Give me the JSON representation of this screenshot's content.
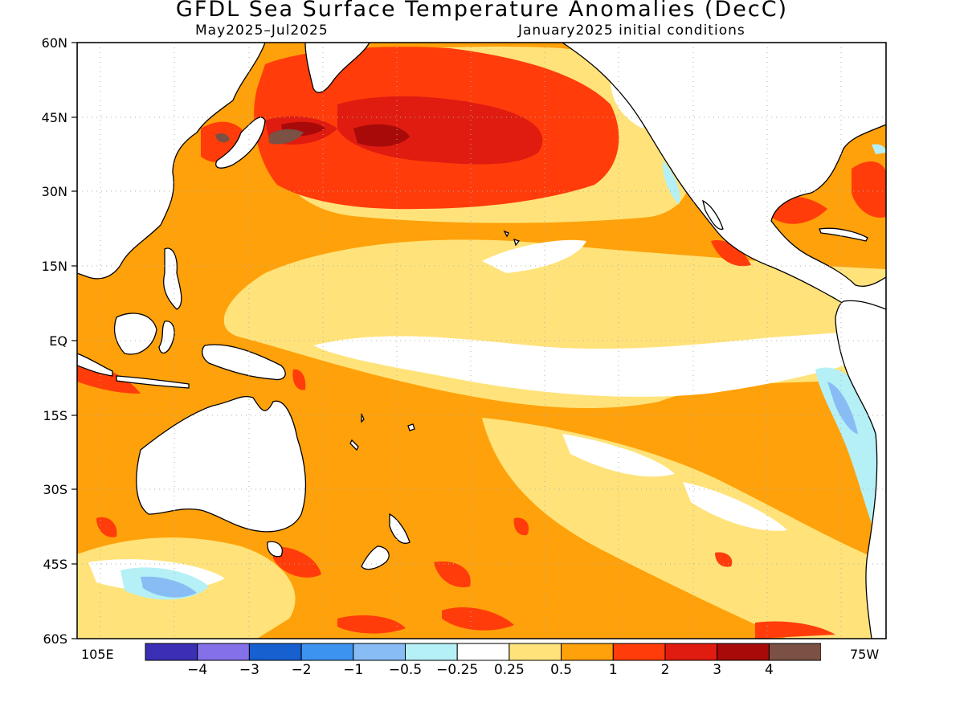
{
  "title": "GFDL Sea Surface Temperature Anomalies (DecC)",
  "subtitle_left": "May2025–Jul2025",
  "subtitle_right": "January2025 initial conditions",
  "lat_labels": [
    "60N",
    "45N",
    "30N",
    "15N",
    "EQ",
    "15S",
    "30S",
    "45S",
    "60S"
  ],
  "lon_labels": {
    "left": "105E",
    "right": "75W"
  },
  "colorbar": {
    "colors": [
      "#3b2fb5",
      "#8470e8",
      "#1660d0",
      "#3d93f0",
      "#87bdf4",
      "#b4f0f6",
      "#ffffff",
      "#ffe37a",
      "#ffa10a",
      "#ff3c0a",
      "#e01b10",
      "#a80a0a",
      "#7a5143"
    ],
    "labels": [
      "−4",
      "−3",
      "−2",
      "−1",
      "−0.5",
      "−0.25",
      "0.25",
      "0.5",
      "1",
      "2",
      "3",
      "4"
    ]
  },
  "map": {
    "region": "Pacific Ocean 105E–75W, 60S–60N",
    "land_color": "#ffffff",
    "coastline_color": "#000000",
    "grid": "dotted"
  }
}
